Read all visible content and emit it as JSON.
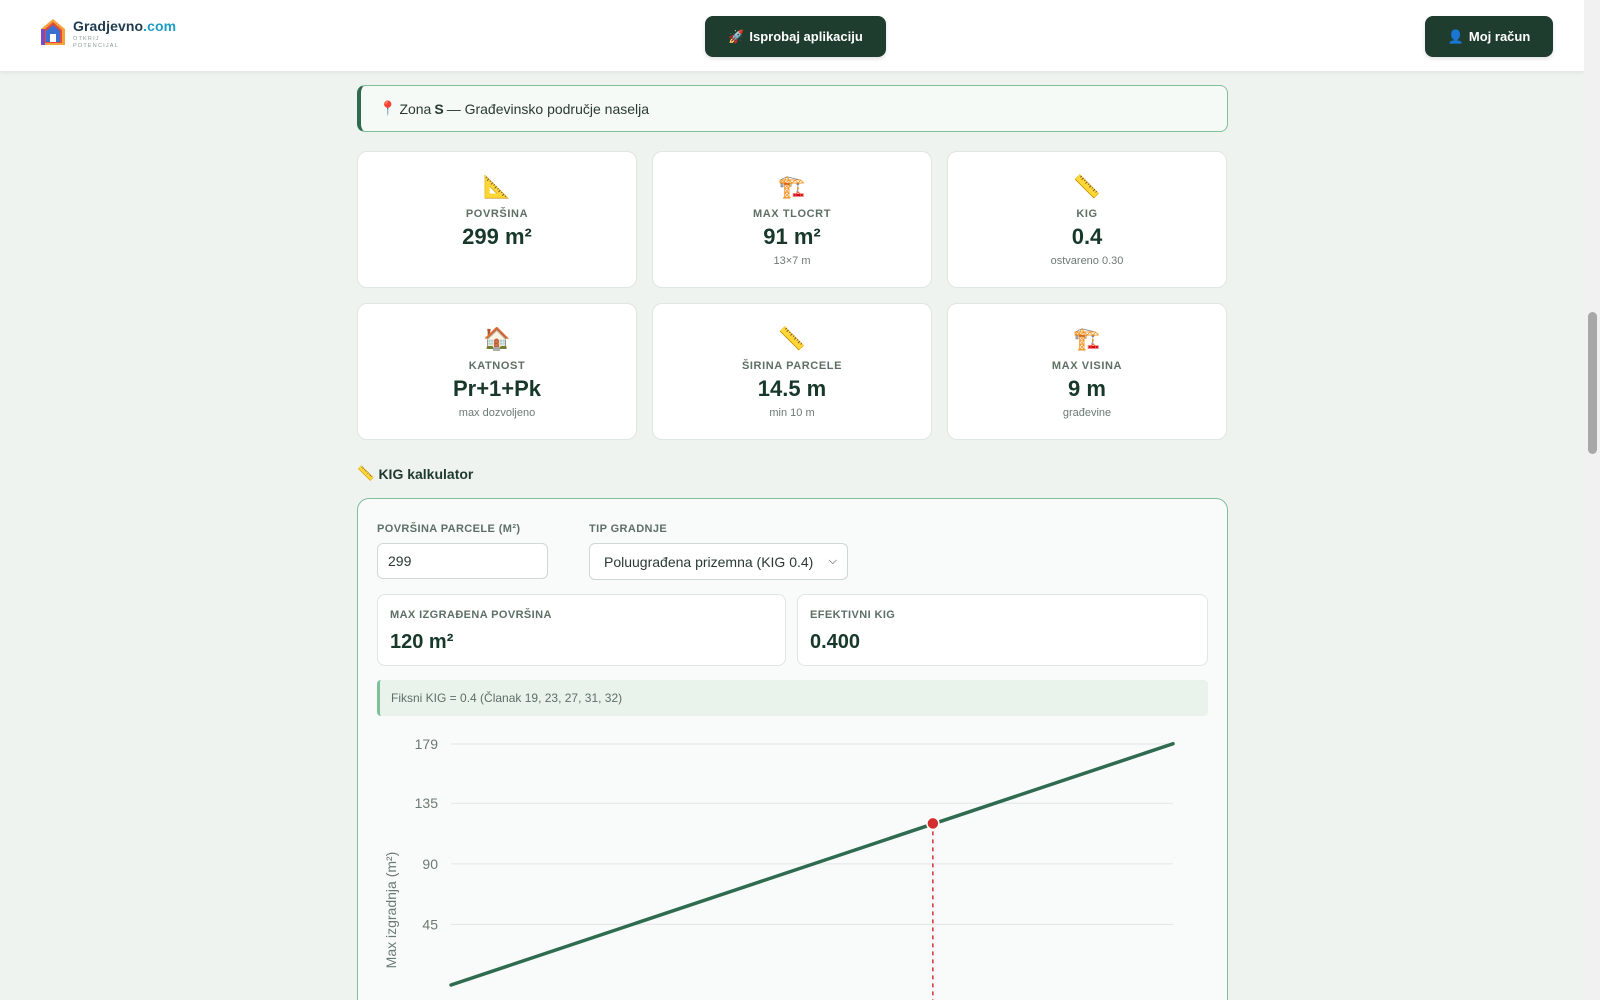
{
  "header": {
    "logo_name": "Gradjevno",
    "logo_domain": ".com",
    "logo_tagline_1": "OTKRIJ",
    "logo_tagline_2": "POTENCIJAL",
    "try_app_icon": "🚀",
    "try_app_label": "Isprobaj aplikaciju",
    "account_icon": "👤",
    "account_label": "Moj račun"
  },
  "zone": {
    "pin_icon": "📍",
    "prefix": "Zona",
    "code": "S",
    "description": "— Građevinsko područje naselja"
  },
  "cards": [
    {
      "icon": "📐",
      "label": "POVRŠINA",
      "value": "299 m²",
      "sub": ""
    },
    {
      "icon": "🏗️",
      "label": "MAX TLOCRT",
      "value": "91 m²",
      "sub": "13×7 m"
    },
    {
      "icon": "📏",
      "label": "KIG",
      "value": "0.4",
      "sub": "ostvareno 0.30"
    },
    {
      "icon": "🏠",
      "label": "KATNOST",
      "value": "Pr+1+Pk",
      "sub": "max dozvoljeno"
    },
    {
      "icon": "📏",
      "label": "ŠIRINA PARCELE",
      "value": "14.5 m",
      "sub": "min 10 m"
    },
    {
      "icon": "🏗️",
      "label": "MAX VISINA",
      "value": "9 m",
      "sub": "građevine"
    }
  ],
  "calculator": {
    "title_icon": "📏",
    "title": "KIG kalkulator",
    "area_label": "POVRŠINA PARCELE (M²)",
    "area_value": "299",
    "type_label": "TIP GRADNJE",
    "type_value": "Poluugrađena prizemna (KIG 0.4)",
    "max_built_label": "MAX IZGRAĐENA POVRŠINA",
    "max_built_value": "120 m²",
    "eff_kig_label": "EFEKTIVNI KIG",
    "eff_kig_value": "0.400",
    "note": "Fiksni KIG = 0.4 (Članak 19, 23, 27, 31, 32)"
  },
  "colors": {
    "brand_dark": "#1e3d2f",
    "line": "#2f6b4f",
    "marker": "#d32f2f",
    "accent_border": "#7fc09a"
  },
  "chart_data": {
    "type": "line",
    "ylabel": "Max izgradnja (m²)",
    "y_ticks": [
      45,
      90,
      135,
      179
    ],
    "ylim": [
      0,
      179
    ],
    "xlim": [
      0,
      448
    ],
    "grid": true,
    "series": [
      {
        "x": [
          0,
          448
        ],
        "values": [
          0,
          179.2
        ]
      }
    ],
    "highlight": {
      "x": 299,
      "y": 120
    }
  }
}
